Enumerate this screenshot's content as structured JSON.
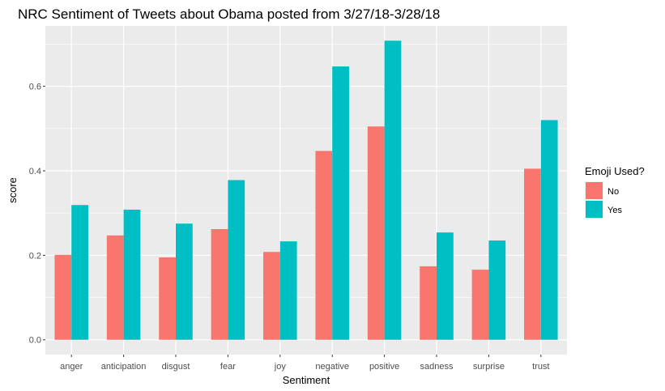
{
  "chart_data": {
    "type": "bar",
    "title": "NRC Sentiment of Tweets about Obama posted from 3/27/18-3/28/18",
    "xlabel": "Sentiment",
    "ylabel": "score",
    "categories": [
      "anger",
      "anticipation",
      "disgust",
      "fear",
      "joy",
      "negative",
      "positive",
      "sadness",
      "surprise",
      "trust"
    ],
    "series": [
      {
        "name": "No",
        "color": "#F8766D",
        "values": [
          0.201,
          0.247,
          0.195,
          0.262,
          0.208,
          0.447,
          0.505,
          0.174,
          0.166,
          0.405
        ]
      },
      {
        "name": "Yes",
        "color": "#00BFC4",
        "values": [
          0.319,
          0.308,
          0.275,
          0.378,
          0.233,
          0.647,
          0.708,
          0.254,
          0.235,
          0.52
        ]
      }
    ],
    "yticks": [
      0.0,
      0.2,
      0.4,
      0.6
    ],
    "ytick_labels": [
      "0.0",
      "0.2",
      "0.4",
      "0.6"
    ],
    "ylim": [
      -0.035,
      0.743
    ],
    "grid": true,
    "panel_color": "#EBEBEB",
    "legend": {
      "title": "Emoji Used?",
      "position": "right"
    }
  }
}
